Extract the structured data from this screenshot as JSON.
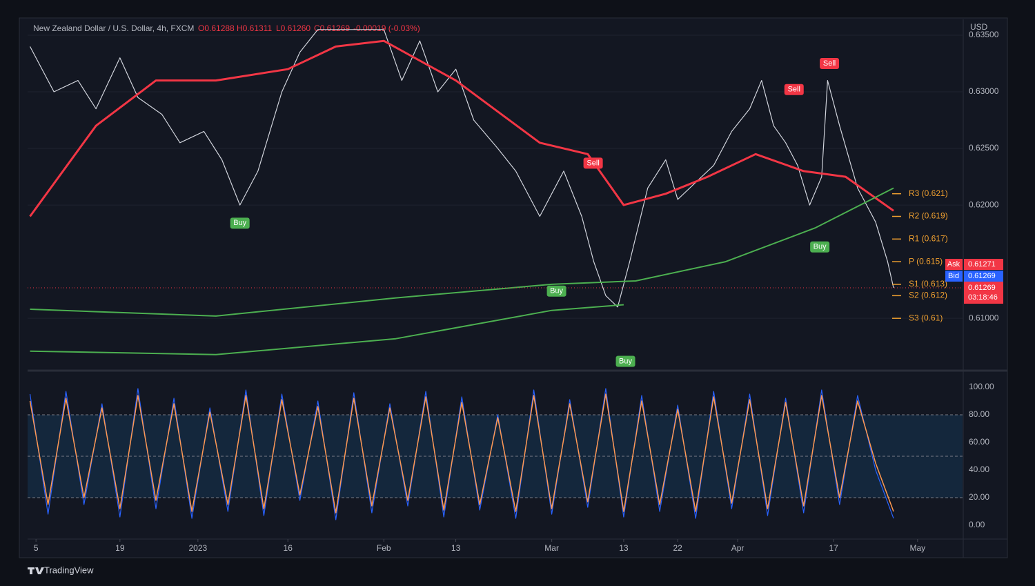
{
  "chart_data": [
    {
      "type": "line",
      "title": "New Zealand Dollar / U.S. Dollar, 4h, FXCM",
      "ohlc": [
        "O0.61288",
        "H0.61311",
        "L0.61260",
        "C0.61269"
      ],
      "change": "-0.00019 (-0.03%)",
      "y_unit": "USD",
      "xlim": [
        -1.4,
        154.5
      ],
      "ylim": [
        0.6055,
        0.6364
      ],
      "yticks": [
        {
          "value": 0.61,
          "label": "0.61000"
        },
        {
          "value": 0.62,
          "label": "0.62000"
        },
        {
          "value": 0.625,
          "label": "0.62500"
        },
        {
          "value": 0.63,
          "label": "0.63000"
        },
        {
          "value": 0.635,
          "label": "0.63500"
        }
      ],
      "grid": true,
      "series": [
        {
          "color": "#d1d4dc",
          "width": 1.2,
          "x": [
            -1,
            3,
            7,
            10,
            14,
            17,
            21,
            24,
            28,
            31,
            34,
            37,
            41,
            44,
            47,
            58,
            61,
            64,
            67,
            70,
            73,
            77,
            80,
            84,
            86,
            88,
            91,
            93,
            95,
            97,
            99,
            102,
            105,
            107,
            110,
            113,
            116,
            119,
            121,
            123,
            125,
            127,
            129,
            131,
            132,
            134,
            137,
            140,
            142,
            143
          ],
          "values": [
            0.634,
            0.63,
            0.631,
            0.6285,
            0.633,
            0.6295,
            0.628,
            0.6255,
            0.6265,
            0.624,
            0.62,
            0.623,
            0.63,
            0.6335,
            0.6355,
            0.6355,
            0.631,
            0.6345,
            0.63,
            0.632,
            0.6275,
            0.625,
            0.623,
            0.619,
            0.621,
            0.623,
            0.619,
            0.615,
            0.612,
            0.611,
            0.615,
            0.6215,
            0.624,
            0.6205,
            0.622,
            0.6235,
            0.6265,
            0.6285,
            0.631,
            0.627,
            0.6255,
            0.6235,
            0.62,
            0.6225,
            0.631,
            0.627,
            0.6215,
            0.6185,
            0.615,
            0.61269
          ]
        },
        {
          "color": "#f23645",
          "width": 3,
          "x": [
            -1,
            10,
            20,
            30,
            42,
            50,
            58,
            70,
            84,
            92,
            98,
            105,
            112,
            120,
            128,
            135,
            143
          ],
          "values": [
            0.619,
            0.627,
            0.631,
            0.631,
            0.632,
            0.634,
            0.6345,
            0.631,
            0.6255,
            0.6245,
            0.62,
            0.621,
            0.6225,
            0.6245,
            0.623,
            0.6225,
            0.6195
          ]
        },
        {
          "color": "#4caf50",
          "width": 2,
          "x": [
            -1,
            30,
            60,
            86,
            100,
            115,
            130,
            143
          ],
          "values": [
            0.6108,
            0.6102,
            0.6118,
            0.613,
            0.6133,
            0.615,
            0.618,
            0.6215
          ]
        },
        {
          "color": "#4caf50",
          "width": 2,
          "x": [
            -1,
            30,
            60,
            86,
            98
          ],
          "values": [
            0.6071,
            0.6068,
            0.6082,
            0.6107,
            0.6112
          ]
        }
      ],
      "pivots": [
        {
          "label": "R3 (0.621)",
          "value": 0.621
        },
        {
          "label": "R2 (0.619)",
          "value": 0.619
        },
        {
          "label": "R1 (0.617)",
          "value": 0.617
        },
        {
          "label": "P (0.615)",
          "value": 0.615
        },
        {
          "label": "S1 (0.613)",
          "value": 0.613
        },
        {
          "label": "S2 (0.612)",
          "value": 0.612
        },
        {
          "label": "S3 (0.61)",
          "value": 0.61
        }
      ],
      "signals": [
        {
          "text": "Buy",
          "x": 34,
          "y": 0.6184
        },
        {
          "text": "Buy",
          "x": 86.8,
          "y": 0.6124
        },
        {
          "text": "Buy",
          "x": 98.3,
          "y": 0.6062
        },
        {
          "text": "Buy",
          "x": 130.7,
          "y": 0.6163
        },
        {
          "text": "Sell",
          "x": 92.9,
          "y": 0.6237
        },
        {
          "text": "Sell",
          "x": 126.4,
          "y": 0.6302
        },
        {
          "text": "Sell",
          "x": 132.3,
          "y": 0.6325
        }
      ],
      "ask": {
        "label": "Ask",
        "value": 0.61271
      },
      "bid": {
        "label": "Bid",
        "value": 0.61269
      },
      "last": {
        "value": 0.61269,
        "countdown": "03:18:46"
      }
    },
    {
      "type": "line",
      "xlim": [
        -1.4,
        154.5
      ],
      "xticks": [
        {
          "value": 0,
          "label": "5"
        },
        {
          "value": 14,
          "label": "19"
        },
        {
          "value": 27,
          "label": "2023"
        },
        {
          "value": 42,
          "label": "16"
        },
        {
          "value": 58,
          "label": "Feb"
        },
        {
          "value": 70,
          "label": "13"
        },
        {
          "value": 86,
          "label": "Mar"
        },
        {
          "value": 98,
          "label": "13"
        },
        {
          "value": 107,
          "label": "22"
        },
        {
          "value": 117,
          "label": "Apr"
        },
        {
          "value": 133,
          "label": "17"
        },
        {
          "value": 147,
          "label": "May"
        }
      ],
      "ylim": [
        -9.5,
        110.5
      ],
      "yticks": [
        {
          "value": 0,
          "label": "0.00"
        },
        {
          "value": 20,
          "label": "20.00"
        },
        {
          "value": 40,
          "label": "40.00"
        },
        {
          "value": 60,
          "label": "60.00"
        },
        {
          "value": 80,
          "label": "80.00"
        },
        {
          "value": 100,
          "label": "100.00"
        }
      ],
      "levels": [
        20,
        50,
        80
      ],
      "series": [
        {
          "color": "#2962ff",
          "width": 1.2,
          "x": [
            -1,
            2,
            5,
            8,
            11,
            14,
            17,
            20,
            23,
            26,
            29,
            32,
            35,
            38,
            41,
            44,
            47,
            50,
            53,
            56,
            59,
            62,
            65,
            68,
            71,
            74,
            77,
            80,
            83,
            86,
            89,
            92,
            95,
            98,
            101,
            104,
            107,
            110,
            113,
            116,
            119,
            122,
            125,
            128,
            131,
            134,
            137,
            140,
            143
          ],
          "values": [
            95,
            8,
            97,
            15,
            88,
            6,
            99,
            12,
            92,
            5,
            85,
            10,
            98,
            7,
            95,
            18,
            90,
            4,
            96,
            9,
            88,
            14,
            97,
            6,
            93,
            11,
            80,
            5,
            98,
            8,
            91,
            13,
            99,
            6,
            94,
            10,
            87,
            5,
            97,
            12,
            95,
            7,
            92,
            9,
            98,
            15,
            94,
            40,
            5
          ]
        },
        {
          "color": "#ff9850",
          "width": 1.5,
          "x": [
            -1,
            2,
            5,
            8,
            11,
            14,
            17,
            20,
            23,
            26,
            29,
            32,
            35,
            38,
            41,
            44,
            47,
            50,
            53,
            56,
            59,
            62,
            65,
            68,
            71,
            74,
            77,
            80,
            83,
            86,
            89,
            92,
            95,
            98,
            101,
            104,
            107,
            110,
            113,
            116,
            119,
            122,
            125,
            128,
            131,
            134,
            137,
            140,
            143
          ],
          "values": [
            90,
            15,
            92,
            20,
            85,
            12,
            94,
            18,
            88,
            10,
            82,
            15,
            94,
            12,
            91,
            22,
            86,
            9,
            92,
            14,
            85,
            18,
            93,
            11,
            89,
            15,
            78,
            10,
            94,
            12,
            88,
            17,
            95,
            10,
            90,
            15,
            84,
            10,
            93,
            16,
            91,
            12,
            89,
            14,
            94,
            20,
            90,
            45,
            10
          ]
        }
      ]
    }
  ],
  "footer": {
    "brand": "TradingView"
  }
}
